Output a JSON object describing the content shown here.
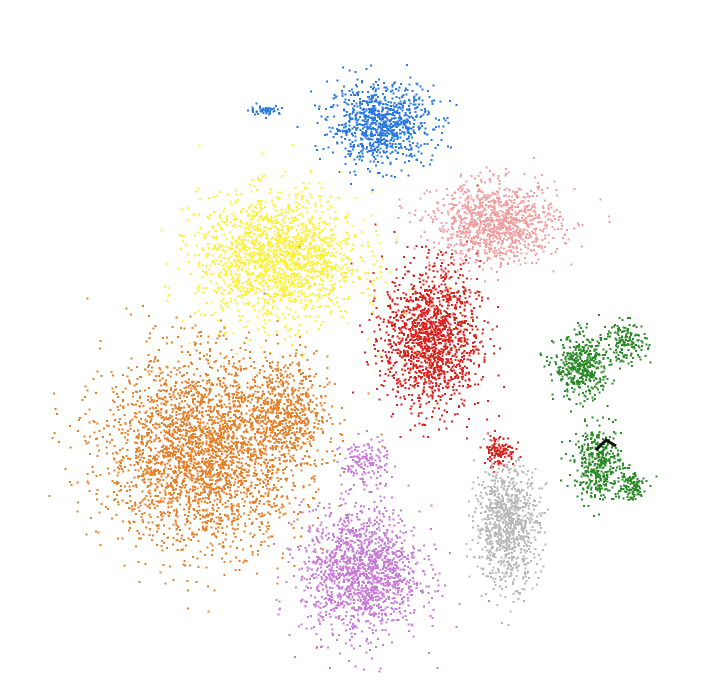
{
  "chart_data": {
    "type": "scatter",
    "title": "",
    "xlabel": "",
    "ylabel": "",
    "axes_visible": false,
    "grid": false,
    "legend": "none",
    "xlim": [
      0,
      100
    ],
    "ylim": [
      0,
      100
    ],
    "series": [
      {
        "color": "#2a7ae2",
        "clusters": [
          {
            "cx": 51.6,
            "cy": 87.0,
            "sx": 6.5,
            "sy": 5.0,
            "n": 900
          },
          {
            "cx": 33.5,
            "cy": 89.2,
            "sx": 2.0,
            "sy": 0.6,
            "n": 50
          }
        ]
      },
      {
        "color": "#f0a0a0",
        "clusters": [
          {
            "cx": 69.5,
            "cy": 71.5,
            "sx": 8.0,
            "sy": 5.0,
            "n": 1100
          }
        ]
      },
      {
        "color": "#d9241f",
        "clusters": [
          {
            "cx": 59.5,
            "cy": 53.5,
            "sx": 6.0,
            "sy": 9.0,
            "n": 1500
          },
          {
            "cx": 70.0,
            "cy": 36.0,
            "sx": 2.0,
            "sy": 2.0,
            "n": 120
          }
        ]
      },
      {
        "color": "#fff132",
        "clusters": [
          {
            "cx": 35.5,
            "cy": 66.0,
            "sx": 10.0,
            "sy": 8.0,
            "n": 1700
          }
        ]
      },
      {
        "color": "#e4812a",
        "clusters": [
          {
            "cx": 24.0,
            "cy": 36.0,
            "sx": 12.5,
            "sy": 12.0,
            "n": 3000
          },
          {
            "cx": 37.0,
            "cy": 42.0,
            "sx": 5.0,
            "sy": 7.0,
            "n": 500
          }
        ]
      },
      {
        "color": "#c77cd6",
        "clusters": [
          {
            "cx": 48.5,
            "cy": 17.0,
            "sx": 7.5,
            "sy": 8.0,
            "n": 1500
          },
          {
            "cx": 49.0,
            "cy": 34.0,
            "sx": 3.0,
            "sy": 3.0,
            "n": 150
          }
        ]
      },
      {
        "color": "#b8b8b8",
        "clusters": [
          {
            "cx": 71.3,
            "cy": 24.5,
            "sx": 4.0,
            "sy": 7.5,
            "n": 900
          }
        ]
      },
      {
        "color": "#2e8b2a",
        "clusters": [
          {
            "cx": 83.0,
            "cy": 49.0,
            "sx": 3.5,
            "sy": 4.0,
            "n": 450
          },
          {
            "cx": 90.0,
            "cy": 53.0,
            "sx": 2.5,
            "sy": 2.5,
            "n": 150
          },
          {
            "cx": 85.5,
            "cy": 34.0,
            "sx": 3.0,
            "sy": 4.5,
            "n": 400
          },
          {
            "cx": 90.5,
            "cy": 30.5,
            "sx": 2.0,
            "sy": 2.0,
            "n": 120
          }
        ]
      }
    ]
  }
}
